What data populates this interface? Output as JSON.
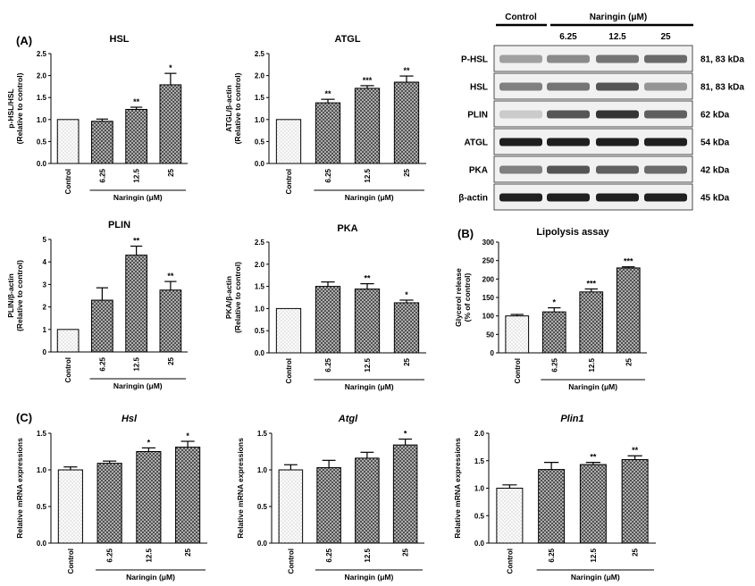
{
  "panel_labels": [
    "(A)",
    "(B)",
    "(C)"
  ],
  "chart_data": [
    {
      "type": "bar",
      "id": "hsl",
      "title": "HSL",
      "ylabel": [
        "p-HSL/HSL",
        "(Relative to control)"
      ],
      "xlabel": "Naringin (μM)",
      "categories": [
        "Control",
        "6.25",
        "12.5",
        "25"
      ],
      "values": [
        1.0,
        0.96,
        1.23,
        1.79
      ],
      "errors": [
        0,
        0.05,
        0.05,
        0.26
      ],
      "significance": [
        "",
        "",
        "**",
        "*"
      ],
      "ylim": [
        0,
        2.5
      ],
      "yticks": [
        "0.0",
        "0.5",
        "1.0",
        "1.5",
        "2.0",
        "2.5"
      ]
    },
    {
      "type": "bar",
      "id": "atgl",
      "title": "ATGL",
      "ylabel": [
        "ATGL/β-actin",
        "(Relative to control)"
      ],
      "xlabel": "Naringin (μM)",
      "categories": [
        "Control",
        "6.25",
        "12.5",
        "25"
      ],
      "values": [
        1.0,
        1.38,
        1.71,
        1.85
      ],
      "errors": [
        0,
        0.08,
        0.06,
        0.14
      ],
      "significance": [
        "",
        "**",
        "***",
        "**"
      ],
      "ylim": [
        0,
        2.5
      ],
      "yticks": [
        "0.0",
        "0.5",
        "1.0",
        "1.5",
        "2.0",
        "2.5"
      ]
    },
    {
      "type": "bar",
      "id": "plin",
      "title": "PLIN",
      "ylabel": [
        "PLIN/β-actin",
        "(Relative to control)"
      ],
      "xlabel": "Naringin (μM)",
      "categories": [
        "Control",
        "6.25",
        "12.5",
        "25"
      ],
      "values": [
        1.0,
        2.3,
        4.3,
        2.75
      ],
      "errors": [
        0,
        0.55,
        0.4,
        0.38
      ],
      "significance": [
        "",
        "",
        "**",
        "**"
      ],
      "ylim": [
        0,
        5
      ],
      "yticks": [
        "0",
        "1",
        "2",
        "3",
        "4",
        "5"
      ]
    },
    {
      "type": "bar",
      "id": "pka",
      "title": "PKA",
      "ylabel": [
        "PKA/β-actin",
        "(Relative to control)"
      ],
      "xlabel": "Naringin (μM)",
      "categories": [
        "Control",
        "6.25",
        "12.5",
        "25"
      ],
      "values": [
        1.0,
        1.5,
        1.44,
        1.13
      ],
      "errors": [
        0,
        0.1,
        0.12,
        0.06
      ],
      "significance": [
        "",
        "",
        "**",
        "*"
      ],
      "ylim": [
        0,
        2.5
      ],
      "yticks": [
        "0.0",
        "0.5",
        "1.0",
        "1.5",
        "2.0",
        "2.5"
      ]
    },
    {
      "type": "bar",
      "id": "lipolysis",
      "title": "Lipolysis assay",
      "ylabel": [
        "Glycerol release",
        "(% of control)"
      ],
      "xlabel": "Naringin (μM)",
      "categories": [
        "Control",
        "6.25",
        "12.5",
        "25"
      ],
      "values": [
        100,
        111,
        165,
        230
      ],
      "errors": [
        4,
        11,
        8,
        3
      ],
      "significance": [
        "",
        "*",
        "***",
        "***"
      ],
      "ylim": [
        0,
        300
      ],
      "yticks": [
        "0",
        "50",
        "100",
        "150",
        "200",
        "250",
        "300"
      ]
    },
    {
      "type": "bar",
      "id": "hsl_mrna",
      "title": "Hsl",
      "title_italic": true,
      "ylabel": [
        "Relative mRNA expressions"
      ],
      "xlabel": "Naringin (μM)",
      "categories": [
        "Control",
        "6.25",
        "12.5",
        "25"
      ],
      "values": [
        1.0,
        1.09,
        1.25,
        1.31
      ],
      "errors": [
        0.04,
        0.03,
        0.05,
        0.08
      ],
      "significance": [
        "",
        "",
        "*",
        "*"
      ],
      "ylim": [
        0,
        1.5
      ],
      "yticks": [
        "0.0",
        "0.5",
        "1.0",
        "1.5"
      ]
    },
    {
      "type": "bar",
      "id": "atgl_mrna",
      "title": "Atgl",
      "title_italic": true,
      "ylabel": [
        "Relative mRNA expressions"
      ],
      "xlabel": "Naringin (μM)",
      "categories": [
        "Control",
        "6.25",
        "12.5",
        "25"
      ],
      "values": [
        1.0,
        1.03,
        1.16,
        1.34
      ],
      "errors": [
        0.07,
        0.1,
        0.08,
        0.08
      ],
      "significance": [
        "",
        "",
        "",
        "*"
      ],
      "ylim": [
        0,
        1.5
      ],
      "yticks": [
        "0.0",
        "0.5",
        "1.0",
        "1.5"
      ]
    },
    {
      "type": "bar",
      "id": "plin1_mrna",
      "title": "Plin1",
      "title_italic": true,
      "ylabel": [
        "Relative mRNA expressions"
      ],
      "xlabel": "Naringin (μM)",
      "categories": [
        "Control",
        "6.25",
        "12.5",
        "25"
      ],
      "values": [
        1.0,
        1.34,
        1.43,
        1.52
      ],
      "errors": [
        0.06,
        0.13,
        0.04,
        0.07
      ],
      "significance": [
        "",
        "",
        "**",
        "**"
      ],
      "ylim": [
        0,
        2.0
      ],
      "yticks": [
        "0.0",
        "0.5",
        "1.0",
        "1.5",
        "2.0"
      ]
    }
  ],
  "western_blot": {
    "header_control": "Control",
    "header_treatment": "Naringin (μM)",
    "doses": [
      "6.25",
      "12.5",
      "25"
    ],
    "proteins": [
      "P-HSL",
      "HSL",
      "PLIN",
      "ATGL",
      "PKA",
      "β-actin"
    ],
    "sizes": [
      "81, 83 kDa",
      "81, 83 kDa",
      "62 kDa",
      "54 kDa",
      "42 kDa",
      "45 kDa"
    ],
    "band_intensity": [
      [
        0.35,
        0.45,
        0.55,
        0.6
      ],
      [
        0.5,
        0.55,
        0.7,
        0.4
      ],
      [
        0.15,
        0.7,
        0.85,
        0.65
      ],
      [
        0.95,
        0.95,
        0.95,
        0.95
      ],
      [
        0.5,
        0.7,
        0.65,
        0.6
      ],
      [
        0.95,
        0.95,
        0.95,
        0.95
      ]
    ]
  },
  "colors": {
    "bar_fill": "#b4b4b4",
    "bar_stroke": "#000000",
    "control_fill": "#f7f7f7"
  }
}
